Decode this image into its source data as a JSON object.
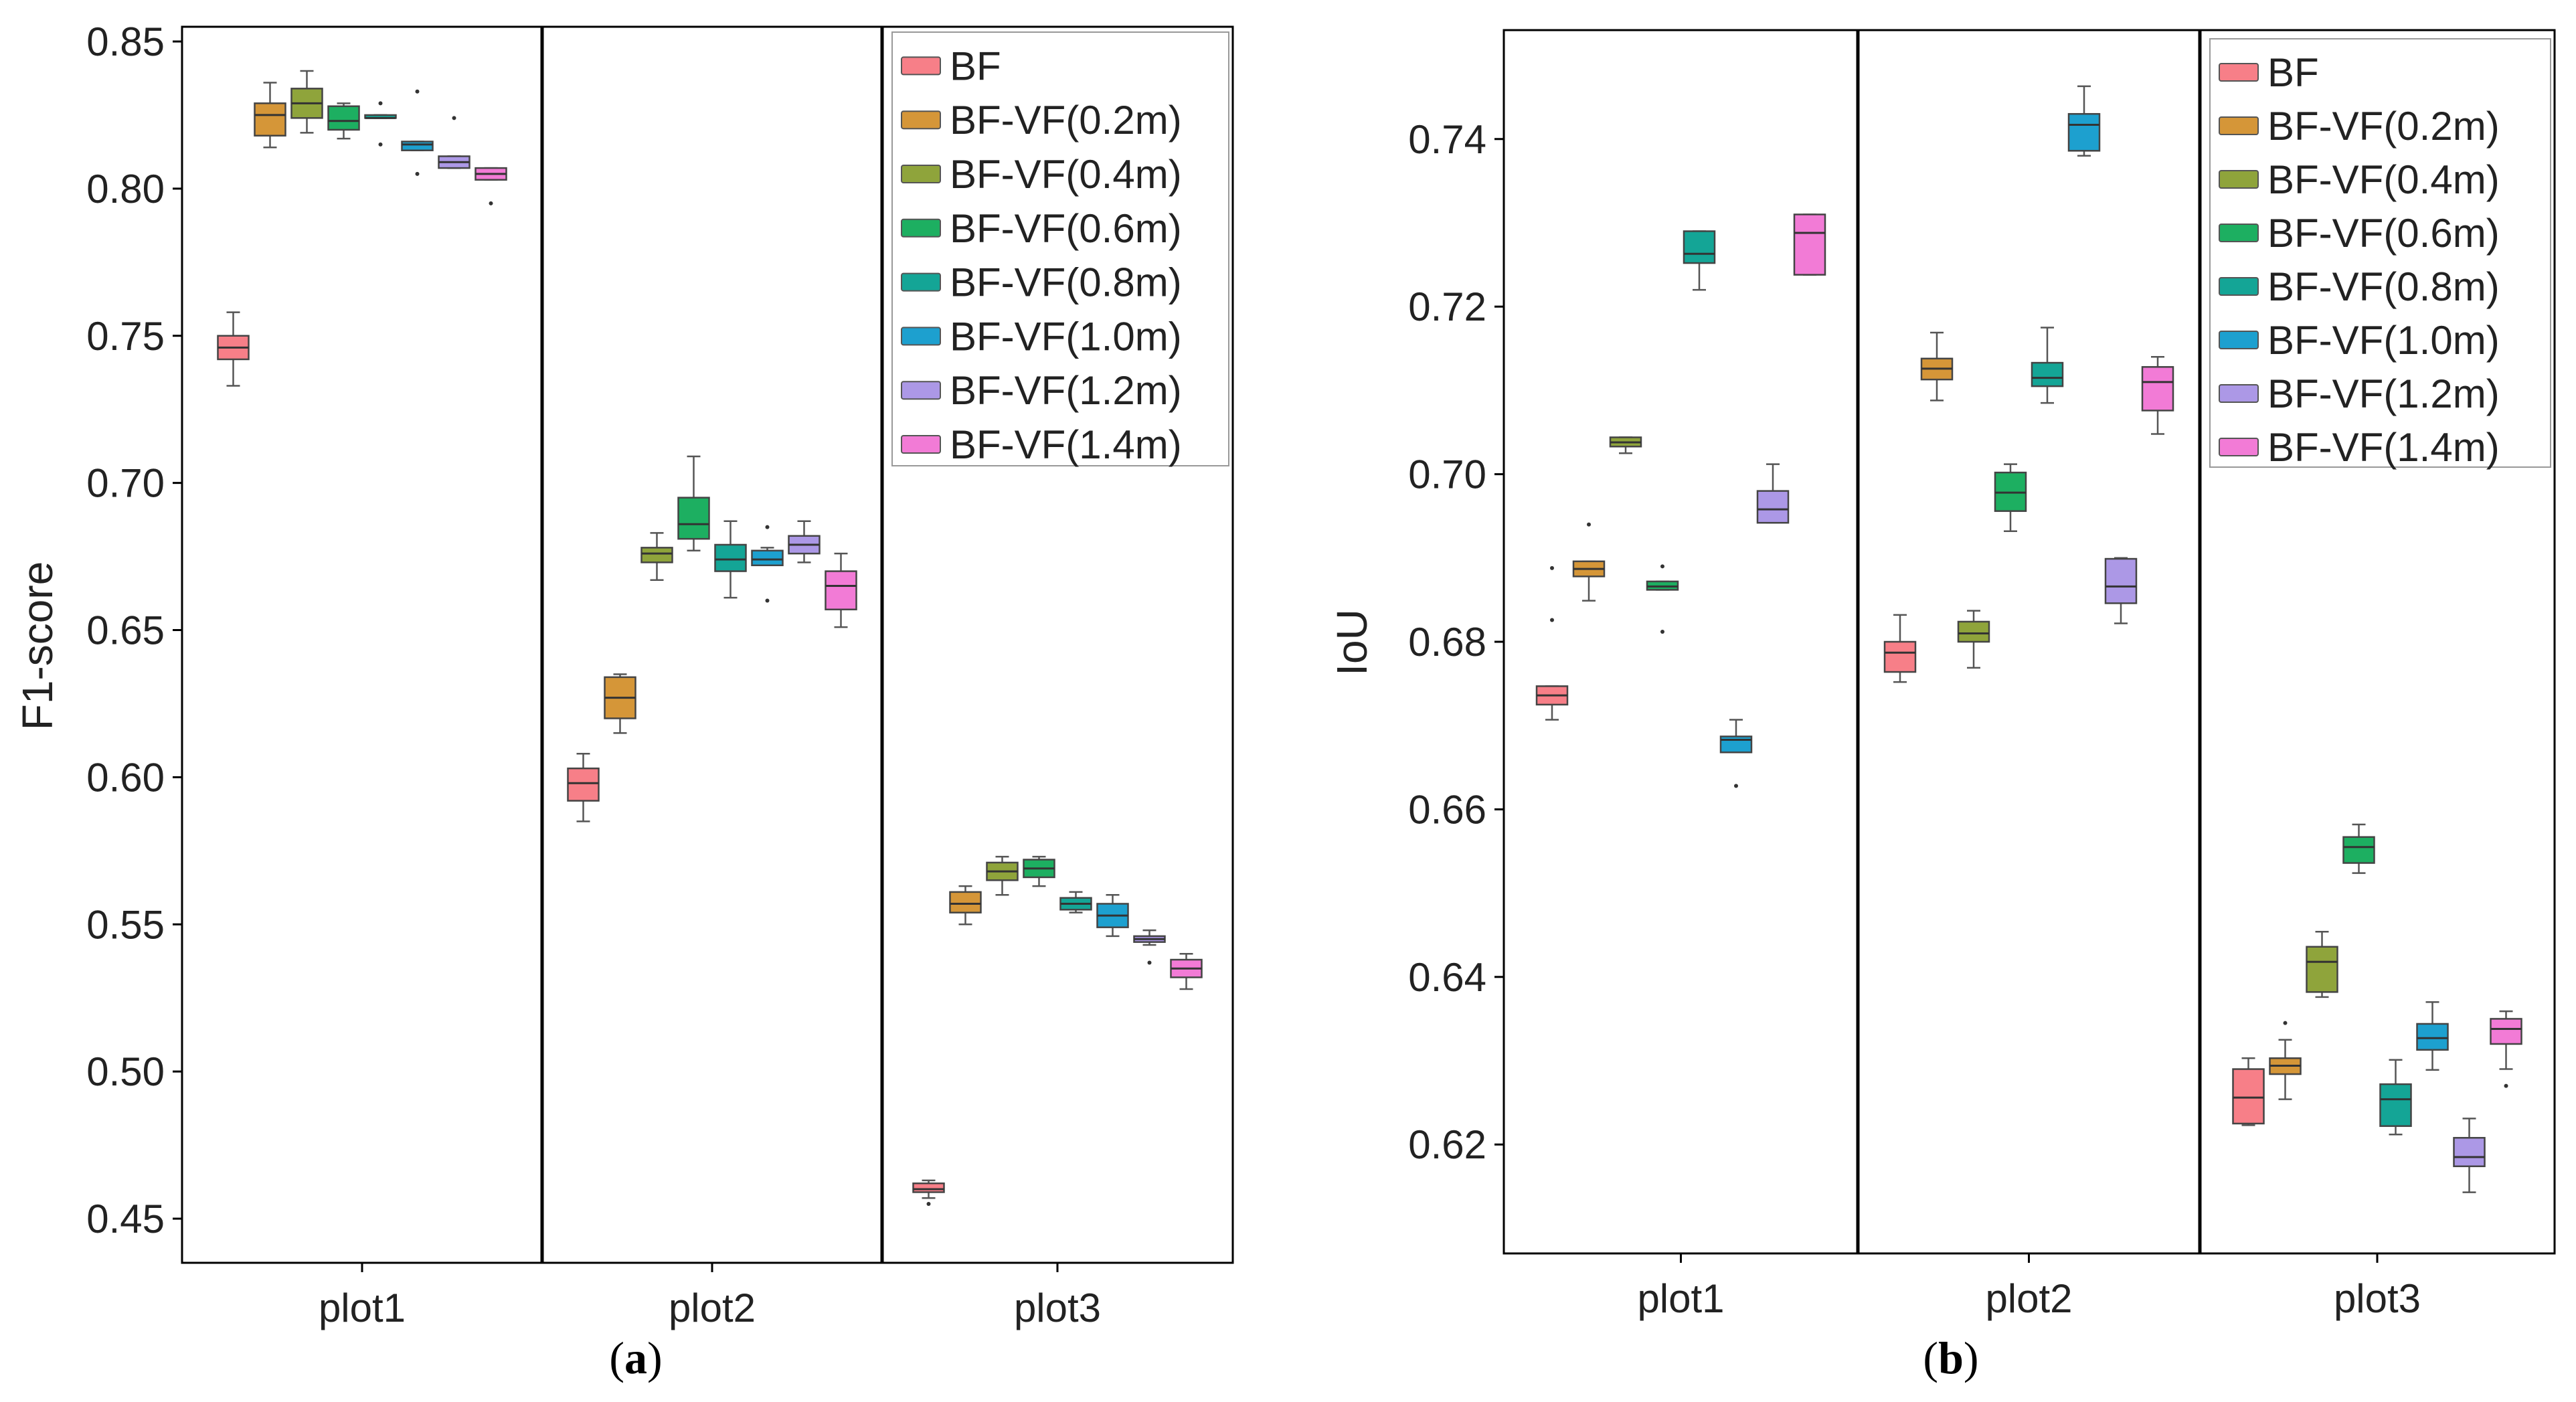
{
  "chart_data": [
    {
      "type": "box",
      "panel_label": {
        "open": "(",
        "letter": "a",
        "close": ")"
      },
      "ylabel": "F1-score",
      "xlabel": "",
      "ylim": [
        0.435,
        0.855
      ],
      "yticks": [
        "0.45",
        "0.50",
        "0.55",
        "0.60",
        "0.65",
        "0.70",
        "0.75",
        "0.80",
        "0.85"
      ],
      "grid": false,
      "legend_position": "top-right",
      "categories": [
        "plot1",
        "plot2",
        "plot3"
      ],
      "series": [
        {
          "name": "BF",
          "color": "#F77F88",
          "boxes": [
            {
              "min": 0.733,
              "q1": 0.742,
              "median": 0.746,
              "q3": 0.75,
              "max": 0.758,
              "outliers": []
            },
            {
              "min": 0.585,
              "q1": 0.592,
              "median": 0.598,
              "q3": 0.603,
              "max": 0.608,
              "outliers": []
            },
            {
              "min": 0.457,
              "q1": 0.459,
              "median": 0.46,
              "q3": 0.462,
              "max": 0.463,
              "outliers": [
                0.455
              ]
            }
          ]
        },
        {
          "name": "BF-VF(0.2m)",
          "color": "#D59638",
          "boxes": [
            {
              "min": 0.814,
              "q1": 0.818,
              "median": 0.825,
              "q3": 0.829,
              "max": 0.836,
              "outliers": []
            },
            {
              "min": 0.615,
              "q1": 0.62,
              "median": 0.627,
              "q3": 0.634,
              "max": 0.635,
              "outliers": []
            },
            {
              "min": 0.55,
              "q1": 0.554,
              "median": 0.557,
              "q3": 0.561,
              "max": 0.563,
              "outliers": []
            }
          ]
        },
        {
          "name": "BF-VF(0.4m)",
          "color": "#8FA43B",
          "boxes": [
            {
              "min": 0.819,
              "q1": 0.824,
              "median": 0.829,
              "q3": 0.834,
              "max": 0.84,
              "outliers": []
            },
            {
              "min": 0.667,
              "q1": 0.673,
              "median": 0.676,
              "q3": 0.678,
              "max": 0.683,
              "outliers": []
            },
            {
              "min": 0.56,
              "q1": 0.565,
              "median": 0.568,
              "q3": 0.571,
              "max": 0.573,
              "outliers": []
            }
          ]
        },
        {
          "name": "BF-VF(0.6m)",
          "color": "#1DAF61",
          "boxes": [
            {
              "min": 0.817,
              "q1": 0.82,
              "median": 0.823,
              "q3": 0.828,
              "max": 0.829,
              "outliers": []
            },
            {
              "min": 0.677,
              "q1": 0.681,
              "median": 0.686,
              "q3": 0.695,
              "max": 0.709,
              "outliers": []
            },
            {
              "min": 0.563,
              "q1": 0.566,
              "median": 0.569,
              "q3": 0.572,
              "max": 0.573,
              "outliers": []
            }
          ]
        },
        {
          "name": "BF-VF(0.8m)",
          "color": "#14A596",
          "boxes": [
            {
              "min": 0.824,
              "q1": 0.824,
              "median": 0.824,
              "q3": 0.825,
              "max": 0.825,
              "outliers": [
                0.829,
                0.815
              ]
            },
            {
              "min": 0.661,
              "q1": 0.67,
              "median": 0.674,
              "q3": 0.679,
              "max": 0.687,
              "outliers": []
            },
            {
              "min": 0.554,
              "q1": 0.555,
              "median": 0.557,
              "q3": 0.559,
              "max": 0.561,
              "outliers": []
            }
          ]
        },
        {
          "name": "BF-VF(1.0m)",
          "color": "#1DA0CF",
          "boxes": [
            {
              "min": 0.813,
              "q1": 0.813,
              "median": 0.815,
              "q3": 0.816,
              "max": 0.816,
              "outliers": [
                0.833,
                0.805
              ]
            },
            {
              "min": 0.672,
              "q1": 0.672,
              "median": 0.674,
              "q3": 0.677,
              "max": 0.678,
              "outliers": [
                0.685,
                0.66
              ]
            },
            {
              "min": 0.546,
              "q1": 0.549,
              "median": 0.553,
              "q3": 0.557,
              "max": 0.56,
              "outliers": []
            }
          ]
        },
        {
          "name": "BF-VF(1.2m)",
          "color": "#AC98E6",
          "boxes": [
            {
              "min": 0.807,
              "q1": 0.807,
              "median": 0.809,
              "q3": 0.811,
              "max": 0.811,
              "outliers": [
                0.824
              ]
            },
            {
              "min": 0.673,
              "q1": 0.676,
              "median": 0.679,
              "q3": 0.682,
              "max": 0.687,
              "outliers": []
            },
            {
              "min": 0.543,
              "q1": 0.544,
              "median": 0.545,
              "q3": 0.546,
              "max": 0.548,
              "outliers": [
                0.537
              ]
            }
          ]
        },
        {
          "name": "BF-VF(1.4m)",
          "color": "#F27BD6",
          "boxes": [
            {
              "min": 0.803,
              "q1": 0.803,
              "median": 0.805,
              "q3": 0.807,
              "max": 0.807,
              "outliers": [
                0.795
              ]
            },
            {
              "min": 0.651,
              "q1": 0.657,
              "median": 0.665,
              "q3": 0.67,
              "max": 0.676,
              "outliers": []
            },
            {
              "min": 0.528,
              "q1": 0.532,
              "median": 0.535,
              "q3": 0.538,
              "max": 0.54,
              "outliers": []
            }
          ]
        }
      ]
    },
    {
      "type": "box",
      "panel_label": {
        "open": "(",
        "letter": "b",
        "close": ")"
      },
      "ylabel": "IoU",
      "xlabel": "",
      "ylim": [
        0.607,
        0.753
      ],
      "yticks": [
        "0.62",
        "0.64",
        "0.66",
        "0.68",
        "0.70",
        "0.72",
        "0.74"
      ],
      "grid": false,
      "legend_position": "top-right",
      "categories": [
        "plot1",
        "plot2",
        "plot3"
      ],
      "series": [
        {
          "name": "BF",
          "color": "#F77F88",
          "boxes": [
            {
              "min": 0.6707,
              "q1": 0.6725,
              "median": 0.6736,
              "q3": 0.6747,
              "max": 0.6747,
              "outliers": [
                0.6826,
                0.6888
              ]
            },
            {
              "min": 0.6752,
              "q1": 0.6764,
              "median": 0.6787,
              "q3": 0.68,
              "max": 0.6832,
              "outliers": []
            },
            {
              "min": 0.6223,
              "q1": 0.6225,
              "median": 0.6256,
              "q3": 0.629,
              "max": 0.6303,
              "outliers": []
            }
          ]
        },
        {
          "name": "BF-VF(0.2m)",
          "color": "#D59638",
          "boxes": [
            {
              "min": 0.6849,
              "q1": 0.6878,
              "median": 0.6887,
              "q3": 0.6896,
              "max": 0.6896,
              "outliers": [
                0.694
              ]
            },
            {
              "min": 0.7088,
              "q1": 0.7113,
              "median": 0.7126,
              "q3": 0.7138,
              "max": 0.7169,
              "outliers": []
            },
            {
              "min": 0.6254,
              "q1": 0.6284,
              "median": 0.6294,
              "q3": 0.6303,
              "max": 0.6325,
              "outliers": [
                0.6345
              ]
            }
          ]
        },
        {
          "name": "BF-VF(0.4m)",
          "color": "#8FA43B",
          "boxes": [
            {
              "min": 0.7025,
              "q1": 0.7033,
              "median": 0.7038,
              "q3": 0.7044,
              "max": 0.7044,
              "outliers": []
            },
            {
              "min": 0.6769,
              "q1": 0.68,
              "median": 0.681,
              "q3": 0.6824,
              "max": 0.6837,
              "outliers": []
            },
            {
              "min": 0.6376,
              "q1": 0.6382,
              "median": 0.6418,
              "q3": 0.6436,
              "max": 0.6454,
              "outliers": []
            }
          ]
        },
        {
          "name": "BF-VF(0.6m)",
          "color": "#1DAF61",
          "boxes": [
            {
              "min": 0.6862,
              "q1": 0.6862,
              "median": 0.6866,
              "q3": 0.6872,
              "max": 0.6872,
              "outliers": [
                0.689,
                0.6812
              ]
            },
            {
              "min": 0.6932,
              "q1": 0.6956,
              "median": 0.6978,
              "q3": 0.7002,
              "max": 0.7012,
              "outliers": []
            },
            {
              "min": 0.6524,
              "q1": 0.6536,
              "median": 0.6555,
              "q3": 0.6567,
              "max": 0.6582,
              "outliers": []
            }
          ]
        },
        {
          "name": "BF-VF(0.8m)",
          "color": "#14A596",
          "boxes": [
            {
              "min": 0.722,
              "q1": 0.7252,
              "median": 0.7263,
              "q3": 0.729,
              "max": 0.729,
              "outliers": []
            },
            {
              "min": 0.7085,
              "q1": 0.7105,
              "median": 0.7115,
              "q3": 0.7133,
              "max": 0.7175,
              "outliers": []
            },
            {
              "min": 0.6212,
              "q1": 0.6222,
              "median": 0.6254,
              "q3": 0.6272,
              "max": 0.6301,
              "outliers": []
            }
          ]
        },
        {
          "name": "BF-VF(1.0m)",
          "color": "#1DA0CF",
          "boxes": [
            {
              "min": 0.6668,
              "q1": 0.6668,
              "median": 0.6683,
              "q3": 0.6687,
              "max": 0.6707,
              "outliers": [
                0.6628
              ]
            },
            {
              "min": 0.738,
              "q1": 0.7386,
              "median": 0.7417,
              "q3": 0.743,
              "max": 0.7463,
              "outliers": []
            },
            {
              "min": 0.6289,
              "q1": 0.6313,
              "median": 0.6327,
              "q3": 0.6344,
              "max": 0.637,
              "outliers": []
            }
          ]
        },
        {
          "name": "BF-VF(1.2m)",
          "color": "#AC98E6",
          "boxes": [
            {
              "min": 0.6942,
              "q1": 0.6942,
              "median": 0.6958,
              "q3": 0.698,
              "max": 0.7012,
              "outliers": []
            },
            {
              "min": 0.6822,
              "q1": 0.6846,
              "median": 0.6866,
              "q3": 0.6899,
              "max": 0.69,
              "outliers": []
            },
            {
              "min": 0.6143,
              "q1": 0.6174,
              "median": 0.6185,
              "q3": 0.6208,
              "max": 0.6231,
              "outliers": []
            }
          ]
        },
        {
          "name": "BF-VF(1.4m)",
          "color": "#F27BD6",
          "boxes": [
            {
              "min": 0.7238,
              "q1": 0.7238,
              "median": 0.7288,
              "q3": 0.731,
              "max": 0.731,
              "outliers": []
            },
            {
              "min": 0.7048,
              "q1": 0.7076,
              "median": 0.711,
              "q3": 0.7128,
              "max": 0.714,
              "outliers": []
            },
            {
              "min": 0.629,
              "q1": 0.632,
              "median": 0.6338,
              "q3": 0.635,
              "max": 0.6359,
              "outliers": [
                0.627
              ]
            }
          ]
        }
      ]
    }
  ]
}
